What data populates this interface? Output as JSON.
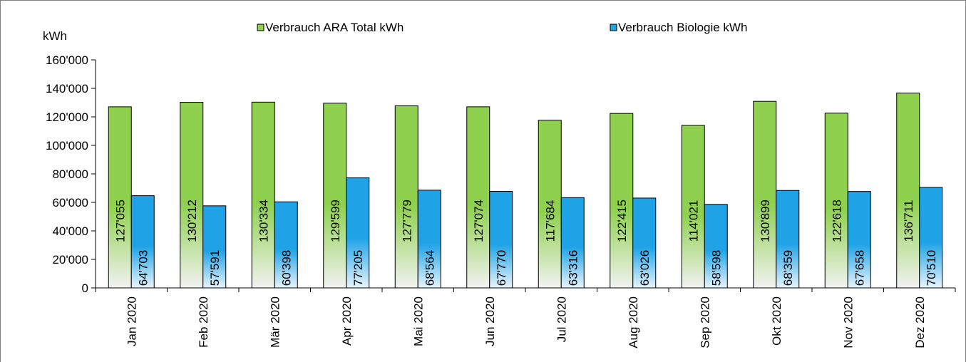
{
  "chart_data": {
    "type": "bar",
    "ylabel": "kWh",
    "ylim": [
      0,
      160000
    ],
    "ytick_step": 20000,
    "ytick_labels": [
      "0",
      "20'000",
      "40'000",
      "60'000",
      "80'000",
      "100'000",
      "120'000",
      "140'000",
      "160'000"
    ],
    "grid": false,
    "legend_position": "top",
    "categories": [
      "Jan 2020",
      "Feb 2020",
      "Mär 2020",
      "Apr 2020",
      "Mai 2020",
      "Jun 2020",
      "Jul 2020",
      "Aug 2020",
      "Sep 2020",
      "Okt 2020",
      "Nov 2020",
      "Dez 2020"
    ],
    "series": [
      {
        "name": "Verbrauch ARA Total kWh",
        "color": "#8fd14f",
        "values": [
          127055,
          130212,
          130334,
          129599,
          127779,
          127074,
          117684,
          122415,
          114021,
          130899,
          122618,
          136711
        ],
        "labels": [
          "127'055",
          "130'212",
          "130'334",
          "129'599",
          "127'779",
          "127'074",
          "117'684",
          "122'415",
          "114'021",
          "130'899",
          "122'618",
          "136'711"
        ]
      },
      {
        "name": "Verbrauch Biologie kWh",
        "color": "#1fa3e6",
        "values": [
          64703,
          57591,
          60398,
          77205,
          68564,
          67770,
          63316,
          63026,
          58598,
          68359,
          67658,
          70510
        ],
        "labels": [
          "64'703",
          "57'591",
          "60'398",
          "77'205",
          "68'564",
          "67'770",
          "63'316",
          "63'026",
          "58'598",
          "68'359",
          "67'658",
          "70'510"
        ]
      }
    ]
  }
}
